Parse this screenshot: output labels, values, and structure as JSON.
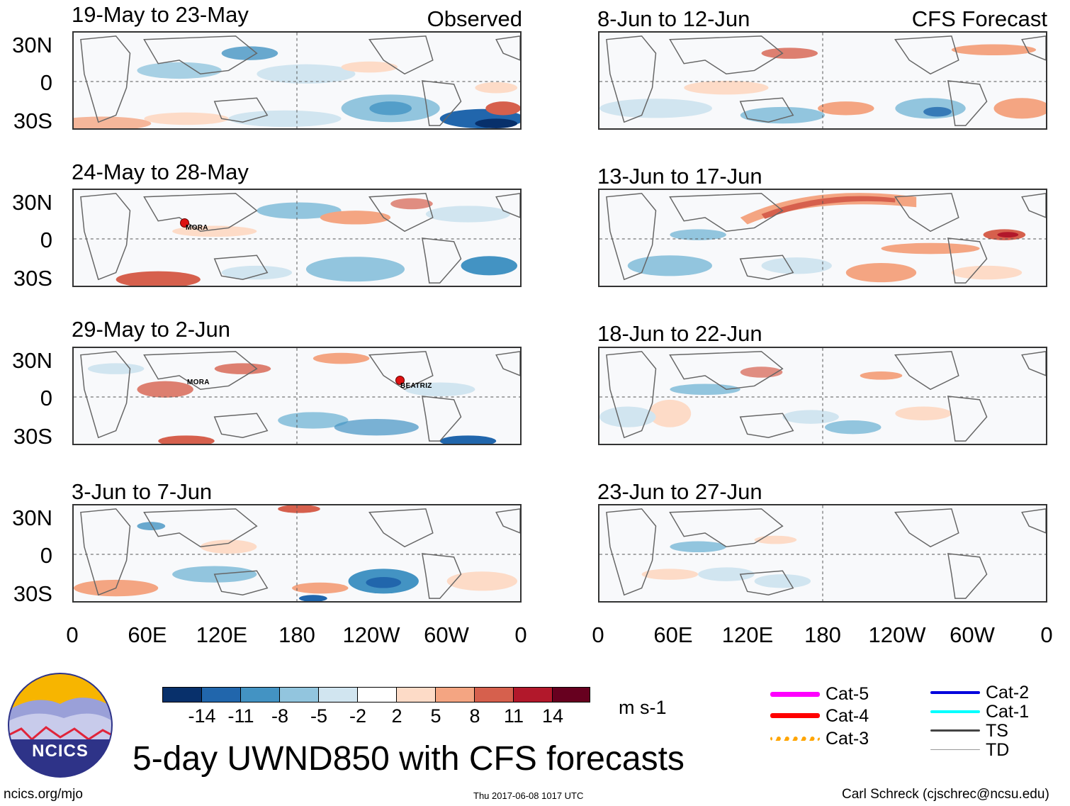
{
  "observed_label": "Observed",
  "forecast_label": "CFS Forecast",
  "panels_left": [
    {
      "title": "19-May to 23-May",
      "storms": []
    },
    {
      "title": "24-May to 28-May",
      "storms": [
        "MORA"
      ]
    },
    {
      "title": "29-May to 2-Jun",
      "storms": [
        "MORA",
        "BEATRIZ"
      ]
    },
    {
      "title": "3-Jun to 7-Jun",
      "storms": []
    }
  ],
  "panels_right": [
    {
      "title": "8-Jun to 12-Jun"
    },
    {
      "title": "13-Jun to 17-Jun"
    },
    {
      "title": "18-Jun to 22-Jun"
    },
    {
      "title": "23-Jun to 27-Jun"
    }
  ],
  "lat_labels": [
    "30N",
    "0",
    "30S"
  ],
  "lon_labels": [
    "0",
    "60E",
    "120E",
    "180",
    "120W",
    "60W",
    "0"
  ],
  "colorbar": {
    "colors": [
      "#08306b",
      "#2166ac",
      "#4393c3",
      "#92c5de",
      "#d1e5f0",
      "#ffffff",
      "#fddbc7",
      "#f4a582",
      "#d6604d",
      "#b2182b",
      "#67001f"
    ],
    "labels": [
      "-14",
      "-11",
      "-8",
      "-5",
      "-2",
      "2",
      "5",
      "8",
      "11",
      "14"
    ],
    "units": "m s-1"
  },
  "legend": [
    {
      "label": "Cat-5",
      "color": "#ff00ff"
    },
    {
      "label": "Cat-4",
      "color": "#ff0000"
    },
    {
      "label": "Cat-3",
      "color": "#ffa500"
    },
    {
      "label": "Cat-2",
      "color": "#0000dd"
    },
    {
      "label": "Cat-1",
      "color": "#00ffff"
    },
    {
      "label": "TS",
      "color": "#444444"
    },
    {
      "label": "TD",
      "color": "#999999"
    }
  ],
  "logo_text": "NCICS",
  "main_title": "5-day UWND850 with CFS forecasts",
  "footer_left": "ncics.org/mjo",
  "footer_center": "Thu 2017-06-08 1017 UTC",
  "footer_right": "Carl Schreck (cjschrec@ncsu.edu)"
}
